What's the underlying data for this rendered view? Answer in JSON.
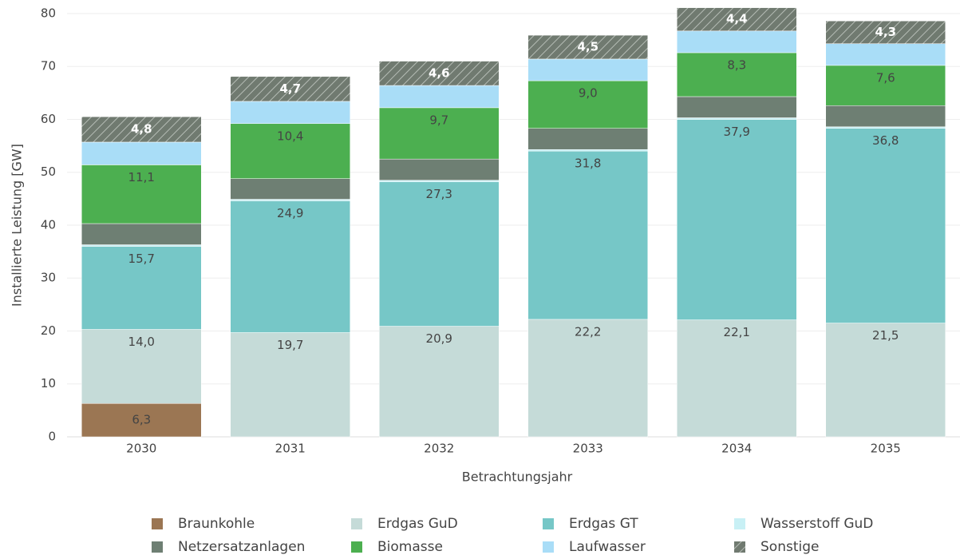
{
  "chart_data": {
    "type": "stacked_bar",
    "categories": [
      "2030",
      "2031",
      "2032",
      "2033",
      "2034",
      "2035"
    ],
    "x_label": "Betrachtungsjahr",
    "y_label": "Installierte Leistung [GW]",
    "ylim": [
      0,
      81.2
    ],
    "yticks": [
      0,
      10,
      20,
      30,
      40,
      50,
      60,
      70,
      80
    ],
    "grid": true,
    "legend": "bottom",
    "series": [
      {
        "name": "Braunkohle",
        "color": "#9b7653",
        "values": [
          6.3,
          0,
          0,
          0,
          0,
          0
        ],
        "value_labels": [
          "6,3",
          null,
          null,
          null,
          null,
          null
        ]
      },
      {
        "name": "Erdgas GuD",
        "color": "#c5dbd8",
        "values": [
          14.0,
          19.7,
          20.9,
          22.2,
          22.1,
          21.5
        ],
        "value_labels": [
          "14,0",
          "19,7",
          "20,9",
          "22,2",
          "22,1",
          "21,5"
        ]
      },
      {
        "name": "Erdgas GT",
        "color": "#76c7c7",
        "values": [
          15.7,
          24.9,
          27.3,
          31.8,
          37.9,
          36.8
        ],
        "value_labels": [
          "15,7",
          "24,9",
          "27,3",
          "31,8",
          "37,9",
          "36,8"
        ]
      },
      {
        "name": "Wasserstoff GuD",
        "color": "#c8f0f5",
        "values": [
          0.3,
          0.3,
          0.3,
          0.3,
          0.3,
          0.3
        ]
      },
      {
        "name": "Netzersatzanlagen",
        "color": "#6e7f73",
        "values": [
          4.0,
          3.9,
          4.0,
          4.0,
          4.0,
          4.0
        ]
      },
      {
        "name": "Biomasse",
        "color": "#4caf50",
        "values": [
          11.1,
          10.4,
          9.7,
          9.0,
          8.3,
          7.6
        ],
        "value_labels": [
          "11,1",
          "10,4",
          "9,7",
          "9,0",
          "8,3",
          "7,6"
        ]
      },
      {
        "name": "Laufwasser",
        "color": "#a9ddf7",
        "values": [
          4.3,
          4.2,
          4.2,
          4.1,
          4.1,
          4.1
        ]
      },
      {
        "name": "Sonstige",
        "color": "#707a70",
        "hatch": true,
        "values": [
          4.8,
          4.7,
          4.6,
          4.5,
          4.4,
          4.3
        ],
        "value_labels": [
          "4,8",
          "4,7",
          "4,6",
          "4,5",
          "4,4",
          "4,3"
        ]
      }
    ]
  }
}
